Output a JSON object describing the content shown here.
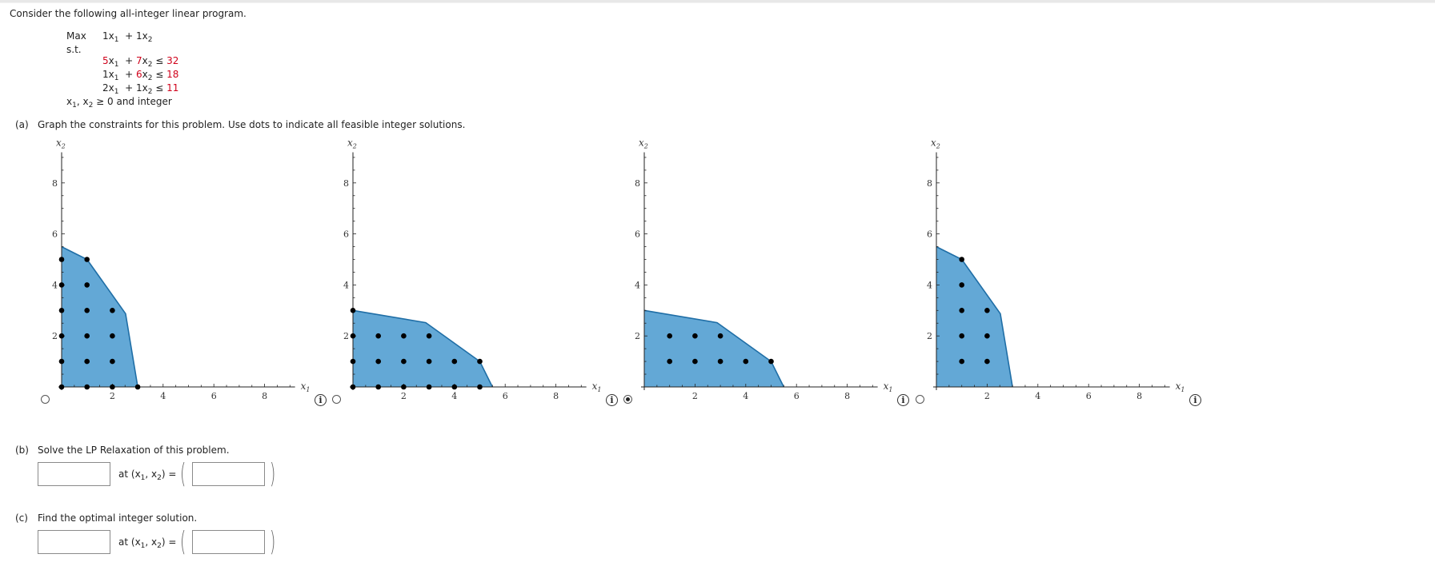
{
  "problem": {
    "intro": "Consider the following all-integer linear program.",
    "objective": {
      "label": "Max",
      "terms": [
        {
          "coef": "1",
          "var": "x",
          "sub": "1",
          "coef_red": false
        },
        {
          "coef": "1",
          "var": "x",
          "sub": "2",
          "coef_red": false
        }
      ]
    },
    "st_label": "s.t.",
    "constraints": [
      {
        "c1": "5",
        "c1_red": true,
        "c2": "7",
        "c2_red": true,
        "op": "≤",
        "rhs": "32"
      },
      {
        "c1": "1",
        "c1_red": false,
        "c2": "6",
        "c2_red": true,
        "op": "≤",
        "rhs": "18"
      },
      {
        "c1": "2",
        "c1_red": false,
        "c2": "1",
        "c2_red": false,
        "op": "≤",
        "rhs": "11"
      }
    ],
    "nonneg": "≥ 0 and integer",
    "highlight_color": "#d0021b"
  },
  "part_a": {
    "label": "(a)",
    "text": "Graph the constraints for this problem. Use dots to indicate all feasible integer solutions."
  },
  "part_b": {
    "label": "(b)",
    "text": "Solve the LP Relaxation of this problem.",
    "at_text": "at (x",
    "objective_value": "",
    "point_value": "",
    "objective_placeholder": "",
    "point_placeholder": ""
  },
  "part_c": {
    "label": "(c)",
    "text": "Find the optimal integer solution.",
    "at_text": "at (x",
    "objective_value": "",
    "point_value": "",
    "objective_placeholder": "",
    "point_placeholder": ""
  },
  "graph_options": [
    {
      "id": "option-1",
      "selected": false
    },
    {
      "id": "option-2",
      "selected": false
    },
    {
      "id": "option-3",
      "selected": true
    },
    {
      "id": "option-4",
      "selected": false
    }
  ],
  "colors": {
    "fill": "#63a8d6",
    "stroke": "#1f6ea6",
    "dot": "#000000",
    "axis": "#222222"
  },
  "chart_data": [
    {
      "type": "scatter",
      "title": "Option 1",
      "xlabel": "x1",
      "ylabel": "x2",
      "xlim": [
        0,
        9.2
      ],
      "ylim": [
        0,
        9.2
      ],
      "x_ticks": [
        2,
        4,
        6,
        8
      ],
      "y_ticks": [
        2,
        4,
        6,
        8
      ],
      "region": [
        [
          0,
          0
        ],
        [
          3,
          0
        ],
        [
          2.52,
          2.87
        ],
        [
          1,
          5
        ],
        [
          0,
          5.5
        ]
      ],
      "points": [
        [
          0,
          0
        ],
        [
          0,
          1
        ],
        [
          0,
          2
        ],
        [
          0,
          3
        ],
        [
          0,
          4
        ],
        [
          0,
          5
        ],
        [
          1,
          0
        ],
        [
          1,
          1
        ],
        [
          1,
          2
        ],
        [
          1,
          3
        ],
        [
          1,
          4
        ],
        [
          1,
          5
        ],
        [
          2,
          0
        ],
        [
          2,
          1
        ],
        [
          2,
          2
        ],
        [
          2,
          3
        ],
        [
          3,
          0
        ]
      ]
    },
    {
      "type": "scatter",
      "title": "Option 2",
      "xlabel": "x1",
      "ylabel": "x2",
      "xlim": [
        0,
        9.2
      ],
      "ylim": [
        0,
        9.2
      ],
      "x_ticks": [
        2,
        4,
        6,
        8
      ],
      "y_ticks": [
        2,
        4,
        6,
        8
      ],
      "region": [
        [
          0,
          0
        ],
        [
          5.5,
          0
        ],
        [
          5,
          1
        ],
        [
          2.87,
          2.52
        ],
        [
          0,
          3
        ]
      ],
      "points": [
        [
          0,
          0
        ],
        [
          1,
          0
        ],
        [
          2,
          0
        ],
        [
          3,
          0
        ],
        [
          4,
          0
        ],
        [
          5,
          0
        ],
        [
          0,
          1
        ],
        [
          1,
          1
        ],
        [
          2,
          1
        ],
        [
          3,
          1
        ],
        [
          4,
          1
        ],
        [
          5,
          1
        ],
        [
          0,
          2
        ],
        [
          1,
          2
        ],
        [
          2,
          2
        ],
        [
          3,
          2
        ],
        [
          0,
          3
        ]
      ]
    },
    {
      "type": "scatter",
      "title": "Option 3",
      "xlabel": "x1",
      "ylabel": "x2",
      "xlim": [
        0,
        9.2
      ],
      "ylim": [
        0,
        9.2
      ],
      "x_ticks": [
        2,
        4,
        6,
        8
      ],
      "y_ticks": [
        2,
        4,
        6,
        8
      ],
      "region": [
        [
          0,
          0
        ],
        [
          5.5,
          0
        ],
        [
          5,
          1
        ],
        [
          2.87,
          2.52
        ],
        [
          0,
          3
        ]
      ],
      "points": [
        [
          1,
          1
        ],
        [
          2,
          1
        ],
        [
          3,
          1
        ],
        [
          4,
          1
        ],
        [
          5,
          1
        ],
        [
          1,
          2
        ],
        [
          2,
          2
        ],
        [
          3,
          2
        ]
      ]
    },
    {
      "type": "scatter",
      "title": "Option 4",
      "xlabel": "x1",
      "ylabel": "x2",
      "xlim": [
        0,
        9.2
      ],
      "ylim": [
        0,
        9.2
      ],
      "x_ticks": [
        2,
        4,
        6,
        8
      ],
      "y_ticks": [
        2,
        4,
        6,
        8
      ],
      "region": [
        [
          0,
          0
        ],
        [
          3,
          0
        ],
        [
          2.52,
          2.87
        ],
        [
          1,
          5
        ],
        [
          0,
          5.5
        ]
      ],
      "points": [
        [
          1,
          1
        ],
        [
          1,
          2
        ],
        [
          1,
          3
        ],
        [
          1,
          4
        ],
        [
          1,
          5
        ],
        [
          2,
          1
        ],
        [
          2,
          2
        ],
        [
          2,
          3
        ]
      ]
    }
  ]
}
